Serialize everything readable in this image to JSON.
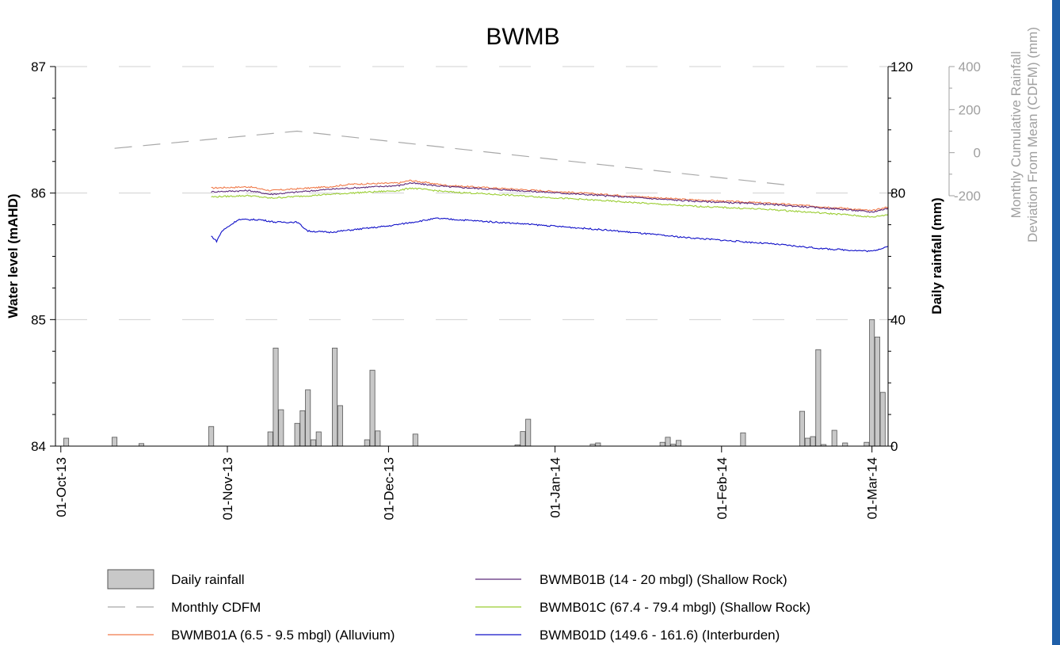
{
  "chart_data": {
    "type": "bar+line",
    "title": "BWMB",
    "x_axis": {
      "type": "date",
      "range": [
        "2013-09-30",
        "2014-03-04"
      ],
      "tick_labels": [
        "01-Oct-13",
        "01-Nov-13",
        "01-Dec-13",
        "01-Jan-14",
        "01-Feb-14",
        "01-Mar-14"
      ],
      "ticks": [
        "2013-10-01",
        "2013-11-01",
        "2013-12-01",
        "2014-01-01",
        "2014-02-01",
        "2014-03-01"
      ]
    },
    "y_left": {
      "label": "Water level (mAHD)",
      "range": [
        84,
        87
      ],
      "ticks": [
        "84",
        "85",
        "86",
        "87"
      ]
    },
    "y_right": {
      "label": "Daily rainfall (mm)",
      "range": [
        0,
        120
      ],
      "ticks": [
        "0",
        "40",
        "80",
        "120"
      ]
    },
    "y_far_right": {
      "label_line1": "Monthly Cumulative Rainfall",
      "label_line2": "Deviation From Mean (CDFM) (mm)",
      "range": [
        -200,
        400
      ],
      "ticks": [
        "-200",
        "0",
        "200",
        "400"
      ]
    },
    "grid": "horizontal dashed",
    "legend_position": "bottom",
    "colors": {
      "rain": "#c8c8c8",
      "rain_edge": "#555555",
      "cdfm": "#a8a8a8",
      "BWMB01A": "#f07a4a",
      "BWMB01B": "#5c2a7a",
      "BWMB01C": "#9acd32",
      "BWMB01D": "#1010c8",
      "grey_axis": "#a0a0a0",
      "right_bar": "#1f5fa8"
    },
    "daily_rainfall": [
      {
        "date": "2013-10-02",
        "mm": 2.5
      },
      {
        "date": "2013-10-11",
        "mm": 2.8
      },
      {
        "date": "2013-10-16",
        "mm": 0.8
      },
      {
        "date": "2013-10-29",
        "mm": 6.2
      },
      {
        "date": "2013-11-09",
        "mm": 4.5
      },
      {
        "date": "2013-11-10",
        "mm": 31
      },
      {
        "date": "2013-11-11",
        "mm": 11.5
      },
      {
        "date": "2013-11-14",
        "mm": 7.2
      },
      {
        "date": "2013-11-15",
        "mm": 11.2
      },
      {
        "date": "2013-11-16",
        "mm": 17.8
      },
      {
        "date": "2013-11-17",
        "mm": 2.0
      },
      {
        "date": "2013-11-18",
        "mm": 4.5
      },
      {
        "date": "2013-11-21",
        "mm": 31
      },
      {
        "date": "2013-11-22",
        "mm": 12.8
      },
      {
        "date": "2013-11-27",
        "mm": 2.0
      },
      {
        "date": "2013-11-28",
        "mm": 24
      },
      {
        "date": "2013-11-29",
        "mm": 4.8
      },
      {
        "date": "2013-12-06",
        "mm": 3.8
      },
      {
        "date": "2013-12-25",
        "mm": 0.4
      },
      {
        "date": "2013-12-26",
        "mm": 4.6
      },
      {
        "date": "2013-12-27",
        "mm": 8.5
      },
      {
        "date": "2014-01-08",
        "mm": 0.6
      },
      {
        "date": "2014-01-09",
        "mm": 1.0
      },
      {
        "date": "2014-01-21",
        "mm": 1.2
      },
      {
        "date": "2014-01-22",
        "mm": 2.8
      },
      {
        "date": "2014-01-23",
        "mm": 0.6
      },
      {
        "date": "2014-01-24",
        "mm": 1.8
      },
      {
        "date": "2014-02-05",
        "mm": 4.2
      },
      {
        "date": "2014-02-16",
        "mm": 11
      },
      {
        "date": "2014-02-17",
        "mm": 2.5
      },
      {
        "date": "2014-02-18",
        "mm": 3.0
      },
      {
        "date": "2014-02-19",
        "mm": 30.5
      },
      {
        "date": "2014-02-20",
        "mm": 0.5
      },
      {
        "date": "2014-02-22",
        "mm": 5.0
      },
      {
        "date": "2014-02-24",
        "mm": 1.0
      },
      {
        "date": "2014-02-28",
        "mm": 1.2
      },
      {
        "date": "2014-03-01",
        "mm": 40
      },
      {
        "date": "2014-03-02",
        "mm": 34.5
      },
      {
        "date": "2014-03-03",
        "mm": 17
      }
    ],
    "monthly_cdfm": [
      {
        "date": "2013-10-11",
        "mm": 20
      },
      {
        "date": "2013-11-14",
        "mm": 100
      },
      {
        "date": "2014-02-13",
        "mm": -150
      }
    ],
    "series": [
      {
        "name": "BWMB01A (6.5 - 9.5 mbgl) (Alluvium)",
        "color_key": "BWMB01A",
        "points": [
          [
            "2013-10-29",
            86.04
          ],
          [
            "2013-11-05",
            86.05
          ],
          [
            "2013-11-09",
            86.02
          ],
          [
            "2013-11-20",
            86.05
          ],
          [
            "2013-11-24",
            86.07
          ],
          [
            "2013-12-03",
            86.08
          ],
          [
            "2013-12-05",
            86.1
          ],
          [
            "2013-12-12",
            86.06
          ],
          [
            "2013-12-25",
            86.03
          ],
          [
            "2014-01-10",
            85.99
          ],
          [
            "2014-01-25",
            85.95
          ],
          [
            "2014-02-10",
            85.92
          ],
          [
            "2014-02-24",
            85.88
          ],
          [
            "2014-03-01",
            85.86
          ],
          [
            "2014-03-04",
            85.89
          ]
        ]
      },
      {
        "name": "BWMB01B (14 - 20 mbgl) (Shallow Rock)",
        "color_key": "BWMB01B",
        "points": [
          [
            "2013-10-29",
            86.01
          ],
          [
            "2013-11-05",
            86.02
          ],
          [
            "2013-11-09",
            85.99
          ],
          [
            "2013-11-20",
            86.03
          ],
          [
            "2013-11-24",
            86.04
          ],
          [
            "2013-12-03",
            86.06
          ],
          [
            "2013-12-05",
            86.08
          ],
          [
            "2013-12-12",
            86.05
          ],
          [
            "2013-12-25",
            86.02
          ],
          [
            "2014-01-10",
            85.98
          ],
          [
            "2014-01-25",
            85.94
          ],
          [
            "2014-02-10",
            85.91
          ],
          [
            "2014-02-24",
            85.87
          ],
          [
            "2014-03-01",
            85.85
          ],
          [
            "2014-03-04",
            85.88
          ]
        ]
      },
      {
        "name": "BWMB01C (67.4 - 79.4 mbgl) (Shallow Rock)",
        "color_key": "BWMB01C",
        "points": [
          [
            "2013-10-29",
            85.97
          ],
          [
            "2013-11-05",
            85.98
          ],
          [
            "2013-11-09",
            85.96
          ],
          [
            "2013-11-20",
            85.99
          ],
          [
            "2013-11-24",
            86.0
          ],
          [
            "2013-12-03",
            86.02
          ],
          [
            "2013-12-05",
            86.04
          ],
          [
            "2013-12-12",
            86.01
          ],
          [
            "2013-12-25",
            85.98
          ],
          [
            "2014-01-10",
            85.94
          ],
          [
            "2014-01-25",
            85.9
          ],
          [
            "2014-02-10",
            85.87
          ],
          [
            "2014-02-24",
            85.83
          ],
          [
            "2014-03-01",
            85.81
          ],
          [
            "2014-03-04",
            85.83
          ]
        ]
      },
      {
        "name": "BWMB01D (149.6 - 161.6) (Interburden)",
        "color_key": "BWMB01D",
        "points": [
          [
            "2013-10-29",
            85.66
          ],
          [
            "2013-10-30",
            85.62
          ],
          [
            "2013-10-31",
            85.7
          ],
          [
            "2013-11-03",
            85.79
          ],
          [
            "2013-11-07",
            85.79
          ],
          [
            "2013-11-10",
            85.77
          ],
          [
            "2013-11-14",
            85.77
          ],
          [
            "2013-11-16",
            85.7
          ],
          [
            "2013-11-20",
            85.69
          ],
          [
            "2013-12-01",
            85.74
          ],
          [
            "2013-12-10",
            85.8
          ],
          [
            "2013-12-25",
            85.76
          ],
          [
            "2014-01-10",
            85.71
          ],
          [
            "2014-01-25",
            85.65
          ],
          [
            "2014-02-10",
            85.6
          ],
          [
            "2014-02-20",
            85.56
          ],
          [
            "2014-03-01",
            85.54
          ],
          [
            "2014-03-04",
            85.58
          ]
        ]
      }
    ],
    "legend": [
      {
        "label": "Daily rainfall",
        "kind": "bar",
        "color_key": "rain"
      },
      {
        "label": "Monthly CDFM",
        "kind": "dash",
        "color_key": "cdfm"
      },
      {
        "label": "BWMB01A (6.5 - 9.5 mbgl) (Alluvium)",
        "kind": "line",
        "color_key": "BWMB01A"
      },
      {
        "label": "BWMB01B (14 - 20 mbgl) (Shallow Rock)",
        "kind": "line",
        "color_key": "BWMB01B"
      },
      {
        "label": "BWMB01C (67.4 - 79.4 mbgl) (Shallow Rock)",
        "kind": "line",
        "color_key": "BWMB01C"
      },
      {
        "label": "BWMB01D (149.6 - 161.6) (Interburden)",
        "kind": "line",
        "color_key": "BWMB01D"
      }
    ]
  }
}
